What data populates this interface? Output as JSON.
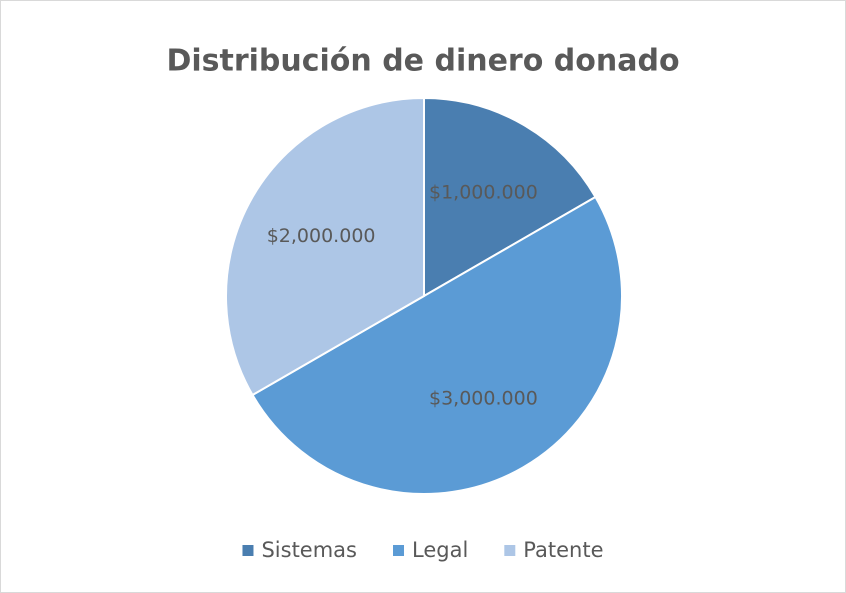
{
  "chart_data": {
    "type": "pie",
    "title": "Distribución de dinero donado",
    "categories": [
      "Sistemas",
      "Legal",
      "Patente"
    ],
    "values": [
      1000000,
      3000000,
      2000000
    ],
    "value_labels": [
      "$1,000.000",
      "$3,000.000",
      "$2,000.000"
    ],
    "colors": [
      "#4a7eb0",
      "#5b9bd5",
      "#adc6e6"
    ],
    "legend": "bottom"
  }
}
